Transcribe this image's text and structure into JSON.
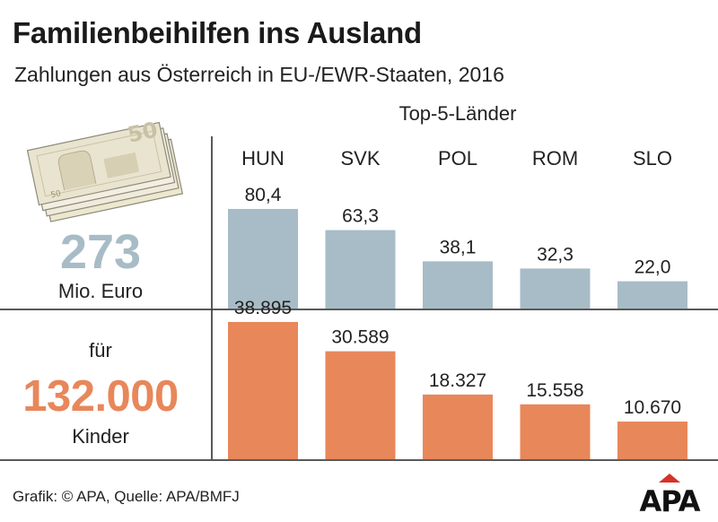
{
  "title": "Familienbeihilfen ins Ausland",
  "subtitle": "Zahlungen aus Österreich in EU-/EWR-Staaten, 2016",
  "top_label": "Top-5-Länder",
  "summary": {
    "money_total": "273",
    "money_unit": "Mio. Euro",
    "kids_prefix": "für",
    "kids_total": "132.000",
    "kids_unit": "Kinder"
  },
  "banknote_denomination": "50",
  "source": "Grafik: © APA, Quelle: APA/BMFJ",
  "logo_text": "APA",
  "colors": {
    "money_bars": "#a7bcc6",
    "kids_bars": "#e8875a",
    "axis": "#222222"
  },
  "chart_data": [
    {
      "type": "bar",
      "categories": [
        "HUN",
        "SVK",
        "POL",
        "ROM",
        "SLO"
      ],
      "values": [
        80.4,
        63.3,
        38.1,
        32.3,
        22.0
      ],
      "labels": [
        "80,4",
        "63,3",
        "38,1",
        "32,3",
        "22,0"
      ],
      "ylim": [
        0,
        130
      ],
      "grid": false
    },
    {
      "type": "bar",
      "categories": [
        "HUN",
        "SVK",
        "POL",
        "ROM",
        "SLO"
      ],
      "values": [
        38895,
        30589,
        18327,
        15558,
        10670
      ],
      "labels": [
        "38.895",
        "30.589",
        "18.327",
        "15.558",
        "10.670"
      ],
      "ylim": [
        0,
        47000
      ],
      "grid": false
    }
  ]
}
